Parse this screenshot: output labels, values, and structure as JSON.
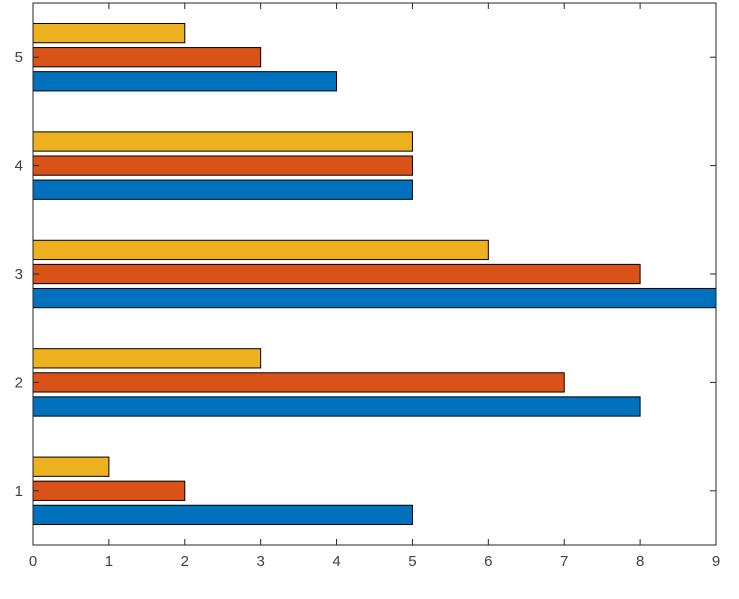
{
  "chart_data": {
    "type": "bar",
    "orientation": "horizontal",
    "categories": [
      "1",
      "2",
      "3",
      "4",
      "5"
    ],
    "series": [
      {
        "values": [
          5,
          8,
          9,
          5,
          4
        ],
        "color": "#0072BD"
      },
      {
        "values": [
          2,
          7,
          8,
          5,
          3
        ],
        "color": "#D95319"
      },
      {
        "values": [
          1,
          3,
          6,
          5,
          2
        ],
        "color": "#EDB120"
      }
    ],
    "title": "",
    "xlabel": "",
    "ylabel": "",
    "xlim": [
      0,
      9
    ],
    "ylim": [
      0.5,
      5.5
    ],
    "xticks": [
      "0",
      "1",
      "2",
      "3",
      "4",
      "5",
      "6",
      "7",
      "8",
      "9"
    ],
    "yticks": [
      "1",
      "2",
      "3",
      "4",
      "5"
    ],
    "grid": false,
    "legend": "none"
  }
}
